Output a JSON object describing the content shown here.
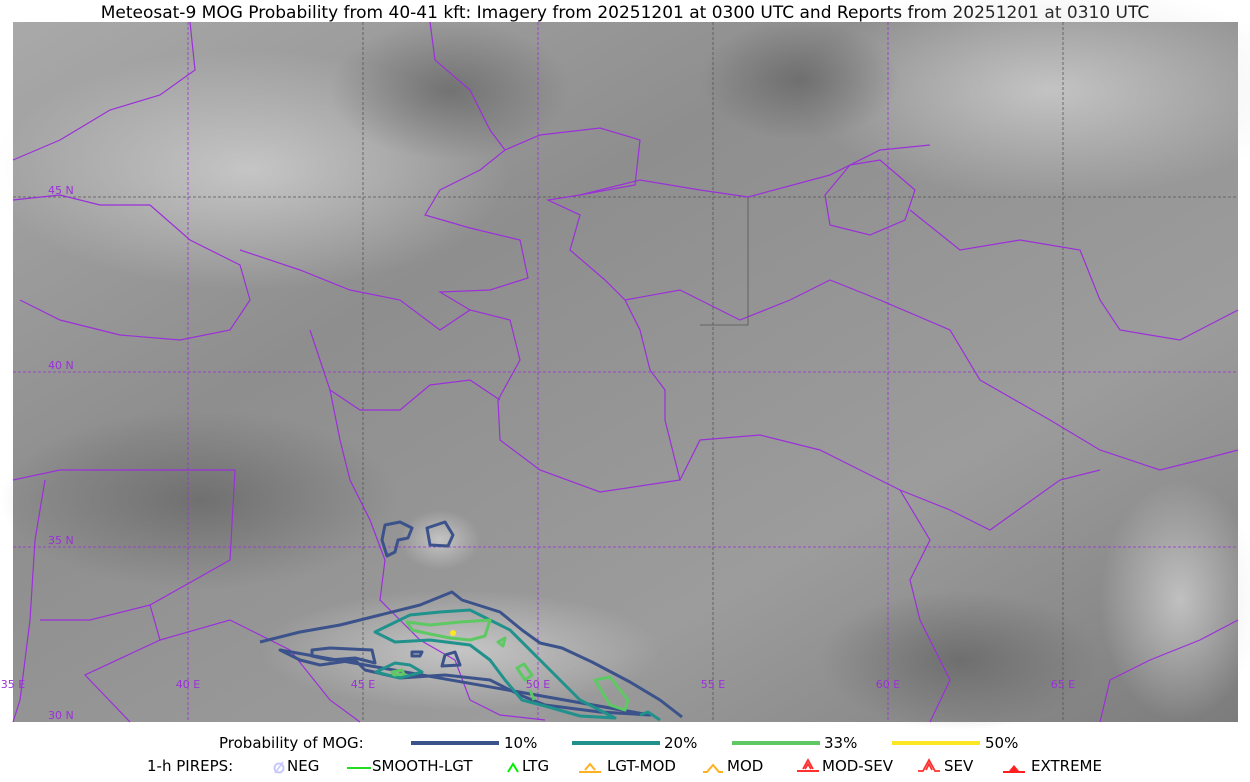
{
  "title": "Meteosat-9 MOG Probability from 40-41 kft: Imagery from 20251201 at 0300 UTC and Reports from 20251201 at 0310 UTC",
  "map": {
    "lon_labels": [
      "35 E",
      "40 E",
      "45 E",
      "50 E",
      "55 E",
      "60 E",
      "65 E"
    ],
    "lat_labels": [
      "45 N",
      "40 N",
      "35 N",
      "30 N"
    ],
    "border_color": "#9b30d9",
    "imagery": "grayscale water vapor imagery"
  },
  "legend": {
    "mog_title": "Probability of MOG:",
    "mog_levels": [
      {
        "label": "10%",
        "color": "#3b528b"
      },
      {
        "label": "20%",
        "color": "#21918c"
      },
      {
        "label": "33%",
        "color": "#5ec962"
      },
      {
        "label": "50%",
        "color": "#fde725"
      }
    ],
    "pirep_title": "1-h PIREPS:",
    "pireps": [
      {
        "label": "NEG",
        "color": "#c8c8ff",
        "icon": "neg-circle-icon"
      },
      {
        "label": "SMOOTH-LGT",
        "color": "#22dd22",
        "icon": "dash-icon"
      },
      {
        "label": "LTG",
        "color": "#00ee00",
        "icon": "caret-icon"
      },
      {
        "label": "LGT-MOD",
        "color": "#ffb020",
        "icon": "caret-bar-icon"
      },
      {
        "label": "MOD",
        "color": "#ffb020",
        "icon": "caret-icon"
      },
      {
        "label": "MOD-SEV",
        "color": "#ff3030",
        "icon": "double-caret-bar-icon"
      },
      {
        "label": "SEV",
        "color": "#ff3030",
        "icon": "double-caret-icon"
      },
      {
        "label": "EXTREME",
        "color": "#ff2020",
        "icon": "filled-triangle-icon"
      }
    ]
  }
}
